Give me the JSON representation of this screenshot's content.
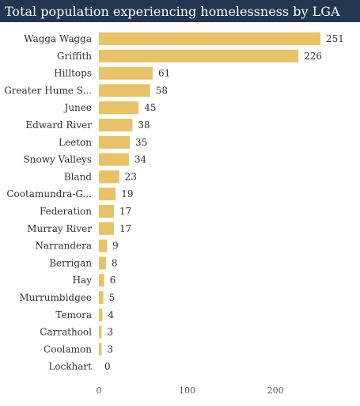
{
  "chart_data": {
    "type": "bar",
    "orientation": "horizontal",
    "title": "Total population experiencing homelessness by LGA",
    "xlabel": "",
    "ylabel": "",
    "categories": [
      "Wagga Wagga",
      "Griffith",
      "Hilltops",
      "Greater Hume S...",
      "Junee",
      "Edward River",
      "Leeton",
      "Snowy Valleys",
      "Bland",
      "Cootamundra-G...",
      "Federation",
      "Murray River",
      "Narrandera",
      "Berrigan",
      "Hay",
      "Murrumbidgee",
      "Temora",
      "Carrathool",
      "Coolamon",
      "Lockhart"
    ],
    "values": [
      251,
      226,
      61,
      58,
      45,
      38,
      35,
      34,
      23,
      19,
      17,
      17,
      9,
      8,
      6,
      5,
      4,
      3,
      3,
      0
    ],
    "value_labels": [
      "251",
      "226",
      "61",
      "58",
      "45",
      "38",
      "35",
      "34",
      "23",
      "19",
      "17",
      "17",
      "9",
      "8",
      "6",
      "5",
      "4",
      "3",
      "3",
      "0"
    ],
    "xlim": [
      0,
      251
    ],
    "xticks": [
      0,
      100,
      200
    ],
    "xtick_labels": [
      "0",
      "100",
      "200"
    ],
    "grid": false,
    "legend": "none",
    "bar_color": "#e8c266",
    "title_background": "#243551",
    "title_color": "#ffffff"
  }
}
